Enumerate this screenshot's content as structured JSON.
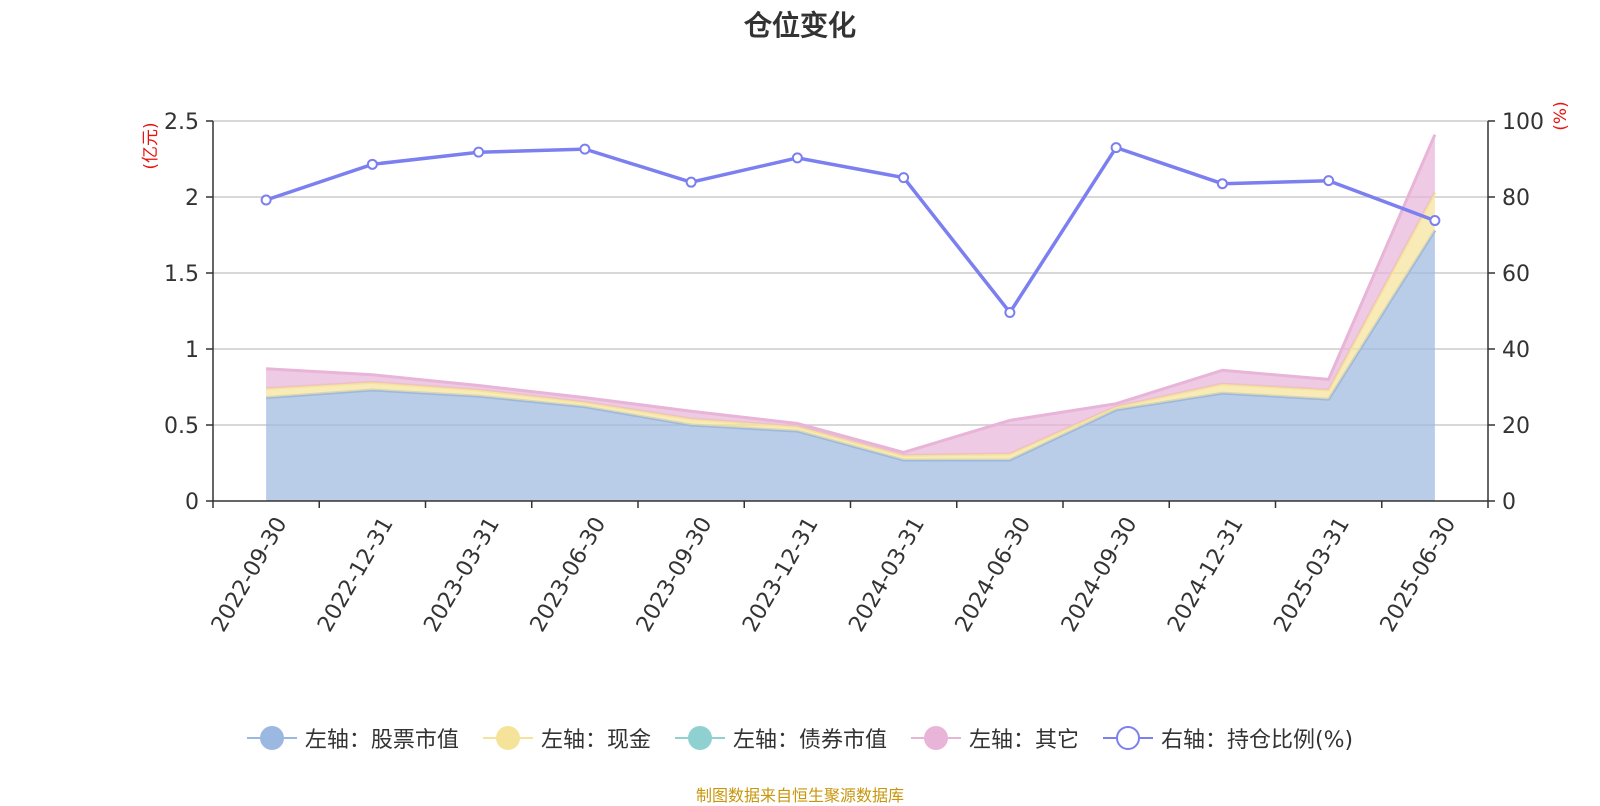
{
  "title": "仓位变化",
  "footer": "制图数据来自恒生聚源数据库",
  "chart_data": {
    "type": "area",
    "stacked": true,
    "categories": [
      "2022-09-30",
      "2022-12-31",
      "2023-03-31",
      "2023-06-30",
      "2023-09-30",
      "2023-12-31",
      "2024-03-31",
      "2024-06-30",
      "2024-09-30",
      "2024-12-31",
      "2025-03-31",
      "2025-06-30"
    ],
    "left_axis": {
      "label": "(亿元)",
      "ylim": [
        0,
        2.5
      ],
      "ticks": [
        "0",
        "0.5",
        "1",
        "1.5",
        "2",
        "2.5"
      ]
    },
    "right_axis": {
      "label": "(%)",
      "ylim": [
        0,
        100
      ],
      "ticks": [
        "0",
        "20",
        "40",
        "60",
        "80",
        "100"
      ]
    },
    "grid": true,
    "legend_position": "bottom",
    "series": [
      {
        "name": "左轴：股票市值",
        "axis": "left",
        "kind": "area",
        "color": "#9bb8e0",
        "values": [
          0.68,
          0.73,
          0.69,
          0.62,
          0.5,
          0.46,
          0.27,
          0.27,
          0.6,
          0.71,
          0.67,
          1.78
        ]
      },
      {
        "name": "左轴：现金",
        "axis": "left",
        "kind": "area",
        "color": "#f5e39a",
        "values": [
          0.06,
          0.05,
          0.04,
          0.03,
          0.04,
          0.03,
          0.03,
          0.04,
          0.02,
          0.06,
          0.06,
          0.25
        ]
      },
      {
        "name": "左轴：债券市值",
        "axis": "left",
        "kind": "area",
        "color": "#8fd1d1",
        "values": [
          0,
          0,
          0,
          0,
          0,
          0,
          0,
          0,
          0,
          0,
          0,
          0
        ]
      },
      {
        "name": "左轴：其它",
        "axis": "left",
        "kind": "area",
        "color": "#e8b4d8",
        "values": [
          0.13,
          0.05,
          0.03,
          0.03,
          0.05,
          0.02,
          0.02,
          0.22,
          0.02,
          0.09,
          0.07,
          0.38
        ]
      },
      {
        "name": "右轴：持仓比例(%)",
        "axis": "right",
        "kind": "line",
        "color": "#7b7ff0",
        "values": [
          79.2,
          88.6,
          91.8,
          92.6,
          83.9,
          90.3,
          85.1,
          49.6,
          93.0,
          83.5,
          84.3,
          73.8
        ]
      }
    ]
  }
}
